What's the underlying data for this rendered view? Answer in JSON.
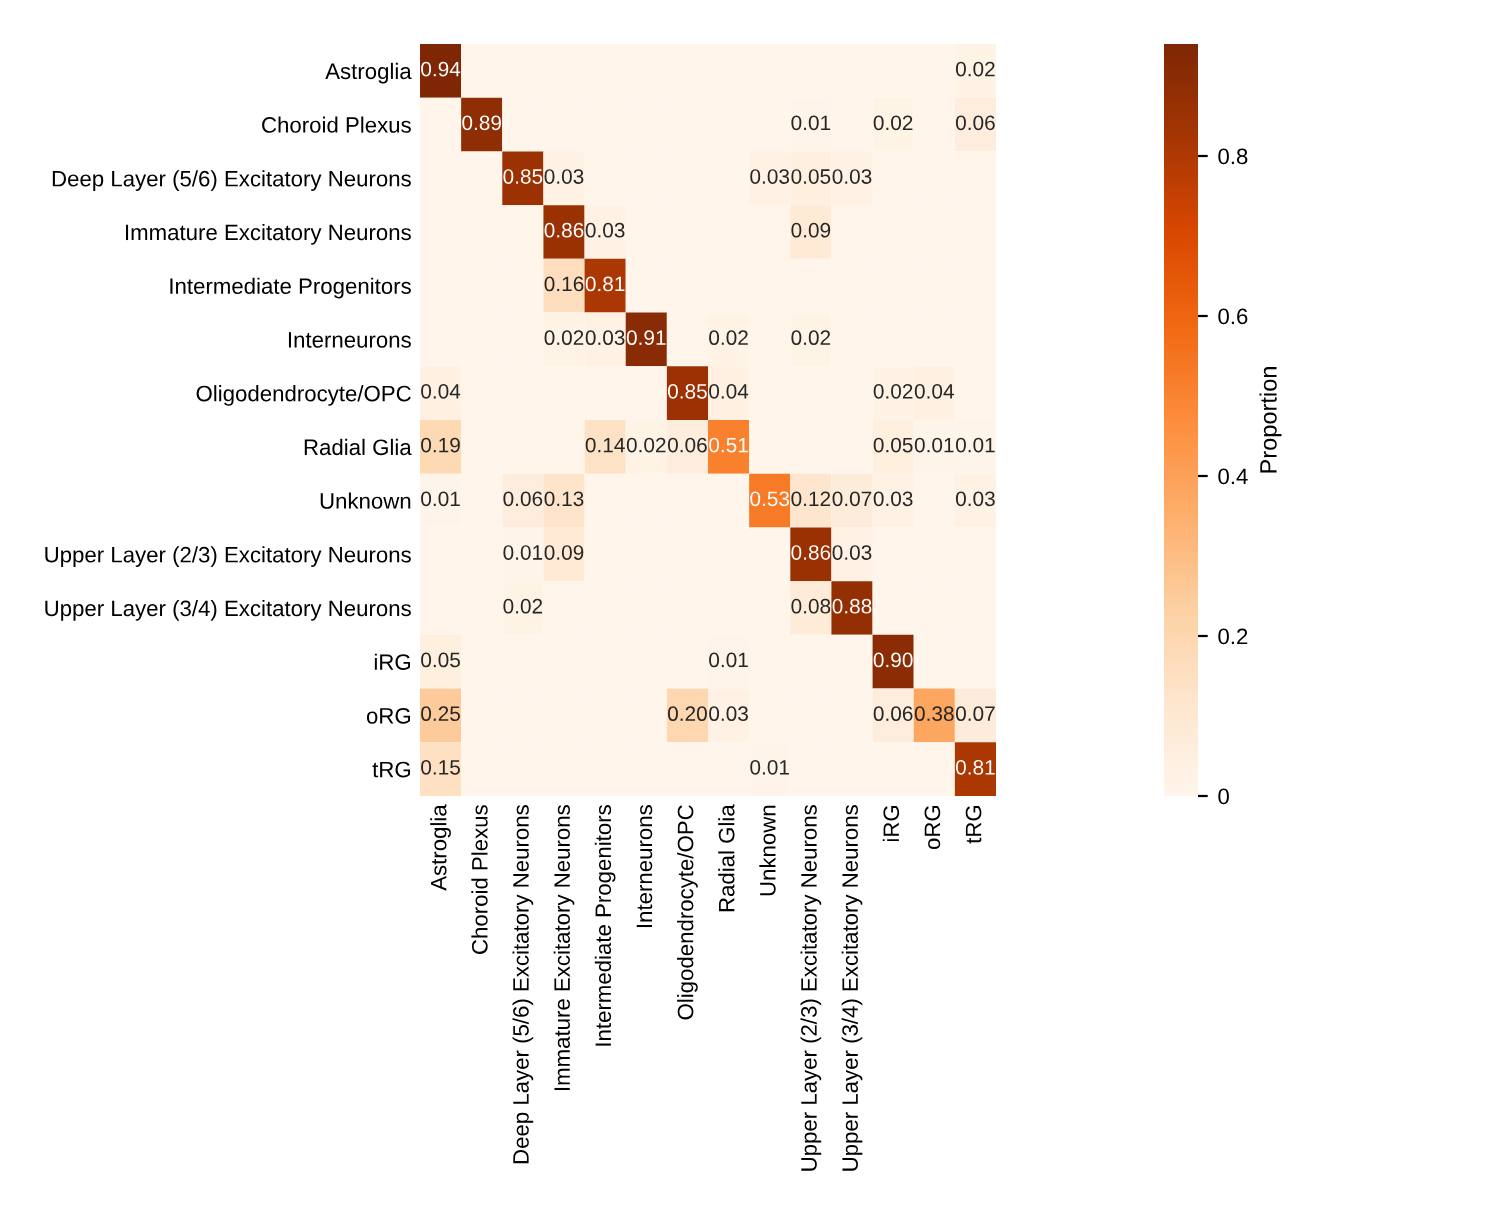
{
  "chart_data": {
    "type": "heatmap",
    "clabel": "Proportion",
    "categories": [
      "Astroglia",
      "Choroid Plexus",
      "Deep Layer (5/6) Excitatory Neurons",
      "Immature Excitatory Neurons",
      "Intermediate Progenitors",
      "Interneurons",
      "Oligodendrocyte/OPC",
      "Radial Glia",
      "Unknown",
      "Upper Layer (2/3) Excitatory Neurons",
      "Upper Layer (3/4) Excitatory Neurons",
      "iRG",
      "oRG",
      "tRG"
    ],
    "y_categories": [
      "Astroglia",
      "Choroid Plexus",
      "Deep Layer (5/6) Excitatory Neurons",
      "Immature Excitatory Neurons",
      "Intermediate Progenitors",
      "Interneurons",
      "Oligodendrocyte/OPC",
      "Radial Glia",
      "Unknown",
      "Upper Layer (2/3) Excitatory Neurons",
      "Upper Layer (3/4) Excitatory Neurons",
      "iRG",
      "oRG",
      "tRG"
    ],
    "cells": [
      [
        0.94,
        0,
        0,
        0,
        0,
        0,
        0,
        0,
        0,
        0,
        0,
        0,
        0,
        0.02
      ],
      [
        0,
        0.89,
        0,
        0,
        0,
        0,
        0,
        0,
        0,
        0.01,
        0,
        0.02,
        0,
        0.06
      ],
      [
        0,
        0,
        0.85,
        0.03,
        0,
        0,
        0,
        0,
        0.03,
        0.05,
        0.03,
        0,
        0,
        0
      ],
      [
        0,
        0,
        0,
        0.86,
        0.03,
        0,
        0,
        0,
        0,
        0.09,
        0,
        0,
        0,
        0
      ],
      [
        0,
        0,
        0,
        0.16,
        0.81,
        0,
        0,
        0,
        0,
        0,
        0,
        0,
        0,
        0
      ],
      [
        0,
        0,
        0,
        0.02,
        0.03,
        0.91,
        0,
        0.02,
        0,
        0.02,
        0,
        0,
        0,
        0
      ],
      [
        0.04,
        0,
        0,
        0,
        0,
        0,
        0.85,
        0.04,
        0,
        0,
        0,
        0.02,
        0.04,
        0
      ],
      [
        0.19,
        0,
        0,
        0,
        0.14,
        0.02,
        0.06,
        0.51,
        0,
        0,
        0,
        0.05,
        0.01,
        0.01
      ],
      [
        0.01,
        0,
        0.06,
        0.13,
        0,
        0,
        0,
        0,
        0.53,
        0.12,
        0.07,
        0.03,
        0,
        0.03
      ],
      [
        0,
        0,
        0.01,
        0.09,
        0,
        0,
        0,
        0,
        0,
        0.86,
        0.03,
        0,
        0,
        0
      ],
      [
        0,
        0,
        0.02,
        0,
        0,
        0,
        0,
        0,
        0,
        0.08,
        0.88,
        0,
        0,
        0
      ],
      [
        0.05,
        0,
        0,
        0,
        0,
        0,
        0,
        0.01,
        0,
        0,
        0,
        0.9,
        0,
        0
      ],
      [
        0.25,
        0,
        0,
        0,
        0,
        0,
        0.2,
        0.03,
        0,
        0,
        0,
        0.06,
        0.38,
        0.07
      ],
      [
        0.15,
        0,
        0,
        0,
        0,
        0,
        0,
        0,
        0.01,
        0,
        0,
        0,
        0,
        0.81
      ]
    ],
    "cell_labels": [
      [
        "0.94",
        null,
        null,
        null,
        null,
        null,
        null,
        null,
        null,
        null,
        null,
        null,
        null,
        "0.02"
      ],
      [
        null,
        "0.89",
        null,
        null,
        null,
        null,
        null,
        null,
        null,
        "0.01",
        null,
        "0.02",
        null,
        "0.06"
      ],
      [
        null,
        null,
        "0.85",
        "0.03",
        null,
        null,
        null,
        null,
        "0.03",
        "0.05",
        "0.03",
        null,
        null,
        null
      ],
      [
        null,
        null,
        null,
        "0.86",
        "0.03",
        null,
        null,
        null,
        null,
        "0.09",
        null,
        null,
        null,
        null
      ],
      [
        null,
        null,
        null,
        "0.16",
        "0.81",
        null,
        null,
        null,
        null,
        null,
        null,
        null,
        null,
        null
      ],
      [
        null,
        null,
        null,
        "0.02",
        "0.03",
        "0.91",
        null,
        "0.02",
        null,
        "0.02",
        null,
        null,
        null,
        null
      ],
      [
        "0.04",
        null,
        null,
        null,
        null,
        null,
        "0.85",
        "0.04",
        null,
        null,
        null,
        "0.02",
        "0.04",
        null
      ],
      [
        "0.19",
        null,
        null,
        null,
        "0.14",
        "0.02",
        "0.06",
        "0.51",
        null,
        null,
        null,
        "0.05",
        "0.01",
        "0.01"
      ],
      [
        "0.01",
        null,
        "0.06",
        "0.13",
        null,
        null,
        null,
        null,
        "0.53",
        "0.12",
        "0.07",
        "0.03",
        null,
        "0.03"
      ],
      [
        null,
        null,
        "0.01",
        "0.09",
        null,
        null,
        null,
        null,
        null,
        "0.86",
        "0.03",
        null,
        null,
        null
      ],
      [
        null,
        null,
        "0.02",
        null,
        null,
        null,
        null,
        null,
        null,
        "0.08",
        "0.88",
        null,
        null,
        null
      ],
      [
        "0.05",
        null,
        null,
        null,
        null,
        null,
        null,
        "0.01",
        null,
        null,
        null,
        "0.90",
        null,
        null
      ],
      [
        "0.25",
        null,
        null,
        null,
        null,
        null,
        "0.20",
        "0.03",
        null,
        null,
        null,
        "0.06",
        "0.38",
        "0.07"
      ],
      [
        "0.15",
        null,
        null,
        null,
        null,
        null,
        null,
        null,
        "0.01",
        null,
        null,
        null,
        null,
        "0.81"
      ]
    ],
    "clim": [
      0,
      0.94
    ],
    "cticks": [
      0,
      0.2,
      0.4,
      0.6,
      0.8
    ],
    "data_labels": true
  }
}
